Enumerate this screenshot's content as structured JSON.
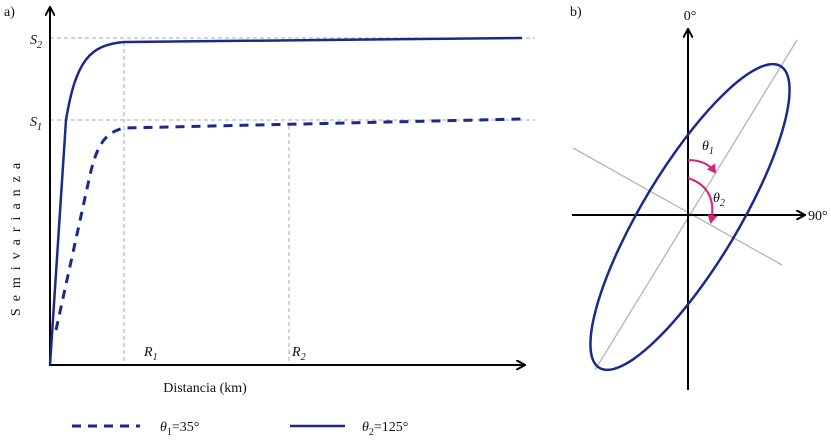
{
  "panel_a": {
    "label": "a)",
    "y_axis_title": "Semivarianza",
    "x_axis_title": "Distancia (km)",
    "sills": [
      {
        "base": "S",
        "sub": "2"
      },
      {
        "base": "S",
        "sub": "1"
      }
    ],
    "ranges": [
      {
        "base": "R",
        "sub": "1"
      },
      {
        "base": "R",
        "sub": "2"
      }
    ],
    "legend": [
      {
        "base": "θ",
        "sub": "1",
        "rest": "=35°"
      },
      {
        "base": "θ",
        "sub": "2",
        "rest": "=125°"
      }
    ]
  },
  "panel_b": {
    "label": "b)",
    "north": "0°",
    "east": "90°",
    "angles": [
      {
        "base": "θ",
        "sub": "1"
      },
      {
        "base": "θ",
        "sub": "2"
      }
    ]
  }
}
